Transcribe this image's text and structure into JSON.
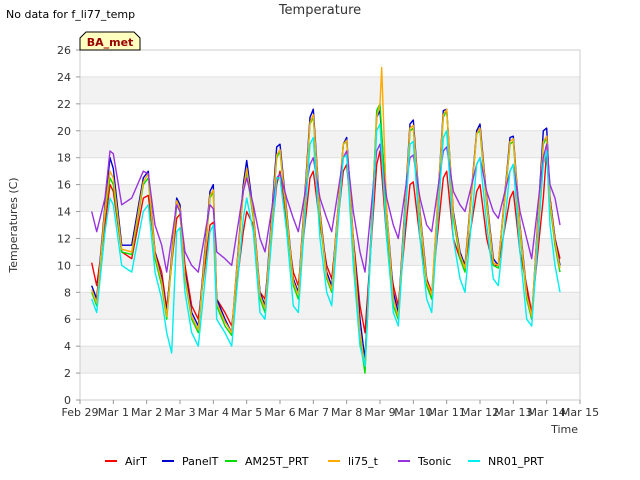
{
  "no_data_note": "No data for f_li77_temp",
  "badge": "BA_met",
  "chart_data": {
    "type": "line",
    "title": "Temperature",
    "xlabel": "Time",
    "ylabel": "Temperatures (C)",
    "ylim": [
      0,
      26
    ],
    "yticks": [
      0,
      2,
      4,
      6,
      8,
      10,
      12,
      14,
      16,
      18,
      20,
      22,
      24,
      26
    ],
    "xlim": [
      0,
      15
    ],
    "xtick_labels": [
      "Feb 29",
      "Mar 1",
      "Mar 2",
      "Mar 3",
      "Mar 4",
      "Mar 5",
      "Mar 6",
      "Mar 7",
      "Mar 8",
      "Mar 9",
      "Mar 10",
      "Mar 11",
      "Mar 12",
      "Mar 13",
      "Mar 14",
      "Mar 15"
    ],
    "grid": "horizontal bands",
    "legend_position": "bottom",
    "series": [
      {
        "name": "AirT",
        "color": "#ff0000",
        "x": [
          0.35,
          0.5,
          0.75,
          0.9,
          1.0,
          1.25,
          1.55,
          1.9,
          2.05,
          2.25,
          2.45,
          2.6,
          2.9,
          3.0,
          3.15,
          3.35,
          3.55,
          3.9,
          4.0,
          4.1,
          4.35,
          4.55,
          4.9,
          5.0,
          5.2,
          5.4,
          5.55,
          5.9,
          6.0,
          6.2,
          6.4,
          6.55,
          6.9,
          7.0,
          7.2,
          7.4,
          7.55,
          7.9,
          8.0,
          8.2,
          8.4,
          8.55,
          8.9,
          9.0,
          9.2,
          9.4,
          9.55,
          9.9,
          10.0,
          10.2,
          10.4,
          10.55,
          10.9,
          11.0,
          11.2,
          11.4,
          11.55,
          11.9,
          12.0,
          12.2,
          12.4,
          12.55,
          12.9,
          13.0,
          13.2,
          13.4,
          13.55,
          13.9,
          14.0,
          14.1,
          14.25,
          14.4
        ],
        "y": [
          10.2,
          8.5,
          13.0,
          16.0,
          15.5,
          11.0,
          10.5,
          15.0,
          15.2,
          11.0,
          9.5,
          6.8,
          13.5,
          13.8,
          10.0,
          7.0,
          6.0,
          13.0,
          13.2,
          7.5,
          6.5,
          5.5,
          12.5,
          14.0,
          13.0,
          8.0,
          7.5,
          16.0,
          17.0,
          13.0,
          9.5,
          8.5,
          16.5,
          17.0,
          13.0,
          10.0,
          9.0,
          17.0,
          17.5,
          12.0,
          7.0,
          5.0,
          17.5,
          18.5,
          12.0,
          8.5,
          7.0,
          16.0,
          16.2,
          12.0,
          9.0,
          8.0,
          16.5,
          17.0,
          12.0,
          10.5,
          10.0,
          15.5,
          16.0,
          12.0,
          10.0,
          10.0,
          15.0,
          15.5,
          11.0,
          8.5,
          6.5,
          15.0,
          18.5,
          15.0,
          12.0,
          10.5
        ]
      },
      {
        "name": "PanelT",
        "color": "#0000cc",
        "x": [
          0.35,
          0.5,
          0.75,
          0.9,
          1.0,
          1.25,
          1.55,
          1.9,
          2.05,
          2.25,
          2.45,
          2.6,
          2.9,
          3.0,
          3.15,
          3.35,
          3.55,
          3.9,
          4.0,
          4.1,
          4.35,
          4.55,
          4.9,
          5.0,
          5.2,
          5.4,
          5.55,
          5.9,
          6.0,
          6.2,
          6.4,
          6.55,
          6.9,
          7.0,
          7.2,
          7.4,
          7.55,
          7.9,
          8.0,
          8.2,
          8.4,
          8.55,
          8.9,
          9.0,
          9.2,
          9.4,
          9.55,
          9.9,
          10.0,
          10.2,
          10.4,
          10.55,
          10.9,
          11.0,
          11.2,
          11.4,
          11.55,
          11.9,
          12.0,
          12.2,
          12.4,
          12.55,
          12.9,
          13.0,
          13.2,
          13.4,
          13.55,
          13.9,
          14.0,
          14.1,
          14.25,
          14.4
        ],
        "y": [
          8.5,
          7.5,
          14.5,
          18.0,
          17.2,
          11.5,
          11.5,
          16.5,
          17.0,
          11.0,
          9.0,
          6.5,
          15.0,
          14.5,
          9.5,
          6.5,
          5.5,
          15.5,
          16.0,
          7.5,
          6.0,
          5.0,
          16.0,
          17.8,
          14.0,
          8.0,
          7.0,
          18.8,
          19.0,
          14.0,
          9.0,
          8.0,
          21.0,
          21.6,
          14.0,
          9.5,
          8.5,
          19.0,
          19.5,
          12.0,
          6.0,
          3.0,
          21.0,
          21.5,
          14.0,
          8.0,
          6.5,
          20.5,
          20.8,
          14.0,
          9.0,
          7.5,
          21.5,
          21.6,
          14.0,
          11.0,
          10.0,
          20.0,
          20.5,
          15.0,
          10.5,
          10.0,
          19.5,
          19.6,
          13.0,
          8.0,
          6.0,
          20.0,
          20.2,
          15.0,
          12.0,
          10.0
        ]
      },
      {
        "name": "AM25T_PRT",
        "color": "#00dd00",
        "x": [
          0.35,
          0.5,
          0.75,
          0.9,
          1.0,
          1.25,
          1.55,
          1.9,
          2.05,
          2.25,
          2.45,
          2.6,
          2.9,
          3.0,
          3.15,
          3.35,
          3.55,
          3.9,
          4.0,
          4.1,
          4.35,
          4.55,
          4.9,
          5.0,
          5.2,
          5.4,
          5.55,
          5.9,
          6.0,
          6.2,
          6.4,
          6.55,
          6.9,
          7.0,
          7.2,
          7.4,
          7.55,
          7.9,
          8.0,
          8.2,
          8.4,
          8.55,
          8.9,
          9.0,
          9.2,
          9.4,
          9.55,
          9.9,
          10.0,
          10.2,
          10.4,
          10.55,
          10.9,
          11.0,
          11.2,
          11.4,
          11.55,
          11.9,
          12.0,
          12.2,
          12.4,
          12.55,
          12.9,
          13.0,
          13.2,
          13.4,
          13.55,
          13.9,
          14.0,
          14.1,
          14.25,
          14.4
        ],
        "y": [
          8.0,
          7.0,
          14.0,
          16.5,
          16.0,
          11.0,
          10.8,
          16.0,
          16.5,
          10.5,
          8.5,
          6.0,
          14.5,
          14.0,
          9.0,
          6.0,
          5.0,
          15.0,
          15.5,
          7.0,
          5.5,
          4.8,
          15.5,
          17.0,
          13.5,
          7.5,
          6.5,
          18.0,
          18.5,
          13.5,
          8.5,
          7.5,
          20.5,
          21.0,
          13.5,
          9.0,
          8.0,
          19.0,
          19.2,
          11.5,
          4.5,
          2.0,
          21.5,
          22.0,
          13.5,
          7.0,
          6.0,
          20.0,
          20.2,
          13.5,
          8.5,
          7.5,
          21.0,
          21.5,
          13.5,
          10.5,
          9.5,
          19.8,
          20.0,
          14.5,
          10.0,
          9.8,
          19.0,
          19.2,
          12.5,
          7.5,
          6.0,
          19.0,
          19.5,
          14.5,
          11.5,
          9.5
        ]
      },
      {
        "name": "li75_t",
        "color": "#ffaa00",
        "x": [
          0.35,
          0.5,
          0.75,
          0.9,
          1.0,
          1.25,
          1.55,
          1.9,
          2.05,
          2.25,
          2.45,
          2.6,
          2.9,
          3.0,
          3.15,
          3.35,
          3.55,
          3.9,
          4.0,
          4.1,
          4.35,
          4.55,
          4.9,
          5.0,
          5.2,
          5.4,
          5.55,
          5.9,
          6.0,
          6.2,
          6.4,
          6.55,
          6.9,
          7.0,
          7.2,
          7.4,
          7.55,
          7.9,
          8.0,
          8.2,
          8.4,
          8.55,
          8.9,
          9.0,
          9.05,
          9.2,
          9.4,
          9.55,
          9.9,
          10.0,
          10.2,
          10.4,
          10.55,
          10.9,
          11.0,
          11.2,
          11.4,
          11.55,
          11.9,
          12.0,
          12.2,
          12.4,
          12.55,
          12.9,
          13.0,
          13.2,
          13.4,
          13.55,
          13.9,
          14.0,
          14.1,
          14.25,
          14.4
        ],
        "y": [
          8.2,
          7.2,
          14.2,
          17.0,
          16.5,
          11.2,
          11.0,
          16.2,
          16.8,
          10.8,
          8.8,
          6.2,
          14.8,
          14.2,
          9.2,
          6.2,
          5.2,
          15.2,
          15.6,
          7.2,
          5.8,
          5.0,
          15.6,
          17.2,
          13.8,
          7.8,
          6.8,
          18.2,
          18.6,
          13.8,
          8.8,
          7.8,
          20.6,
          21.2,
          13.8,
          9.2,
          8.2,
          19.0,
          19.3,
          11.8,
          5.0,
          2.5,
          21.0,
          22.0,
          24.7,
          14.0,
          7.5,
          6.2,
          20.2,
          20.4,
          13.8,
          8.8,
          7.8,
          21.2,
          21.6,
          13.8,
          10.8,
          9.8,
          19.8,
          20.2,
          14.8,
          10.2,
          10.0,
          19.2,
          19.4,
          12.8,
          7.8,
          6.2,
          19.2,
          19.6,
          14.8,
          11.8,
          9.8
        ]
      },
      {
        "name": "Tsonic",
        "color": "#9933dd",
        "x": [
          0.35,
          0.5,
          0.75,
          0.9,
          1.0,
          1.25,
          1.55,
          1.9,
          2.05,
          2.25,
          2.45,
          2.6,
          2.9,
          3.0,
          3.15,
          3.35,
          3.55,
          3.9,
          4.0,
          4.1,
          4.35,
          4.55,
          4.9,
          5.0,
          5.2,
          5.4,
          5.55,
          5.9,
          6.0,
          6.2,
          6.4,
          6.55,
          6.9,
          7.0,
          7.2,
          7.4,
          7.55,
          7.9,
          8.0,
          8.2,
          8.4,
          8.55,
          8.9,
          9.0,
          9.2,
          9.4,
          9.55,
          9.9,
          10.0,
          10.2,
          10.4,
          10.55,
          10.9,
          11.0,
          11.2,
          11.4,
          11.55,
          11.9,
          12.0,
          12.2,
          12.4,
          12.55,
          12.9,
          13.0,
          13.2,
          13.4,
          13.55,
          13.9,
          14.0,
          14.1,
          14.25,
          14.4
        ],
        "y": [
          14.0,
          12.5,
          15.0,
          18.5,
          18.3,
          14.5,
          15.0,
          17.0,
          16.8,
          13.0,
          11.5,
          9.5,
          14.5,
          14.0,
          11.0,
          10.0,
          9.5,
          14.5,
          14.2,
          11.0,
          10.5,
          10.0,
          15.5,
          16.5,
          14.5,
          12.0,
          11.0,
          16.5,
          16.8,
          15.0,
          13.5,
          12.5,
          17.5,
          18.0,
          15.0,
          13.5,
          12.5,
          18.0,
          18.5,
          14.0,
          11.0,
          9.5,
          18.5,
          19.0,
          15.0,
          13.0,
          12.0,
          18.0,
          18.2,
          15.0,
          13.0,
          12.5,
          18.5,
          18.8,
          15.5,
          14.5,
          14.0,
          17.5,
          18.0,
          15.5,
          14.0,
          13.5,
          17.0,
          17.5,
          14.0,
          12.0,
          10.5,
          18.0,
          19.0,
          16.0,
          15.0,
          13.0
        ]
      },
      {
        "name": "NR01_PRT",
        "color": "#00eeee",
        "x": [
          0.35,
          0.5,
          0.75,
          0.9,
          1.0,
          1.25,
          1.55,
          1.9,
          2.05,
          2.25,
          2.45,
          2.6,
          2.75,
          2.9,
          3.0,
          3.15,
          3.35,
          3.55,
          3.9,
          4.0,
          4.1,
          4.35,
          4.55,
          4.9,
          5.0,
          5.2,
          5.4,
          5.55,
          5.9,
          6.0,
          6.2,
          6.4,
          6.55,
          6.9,
          7.0,
          7.2,
          7.4,
          7.55,
          7.9,
          8.0,
          8.2,
          8.4,
          8.55,
          8.9,
          9.0,
          9.2,
          9.4,
          9.55,
          9.9,
          10.0,
          10.2,
          10.4,
          10.55,
          10.9,
          11.0,
          11.2,
          11.4,
          11.55,
          11.9,
          12.0,
          12.2,
          12.4,
          12.55,
          12.9,
          13.0,
          13.2,
          13.4,
          13.55,
          13.9,
          14.0,
          14.1,
          14.25,
          14.4
        ],
        "y": [
          7.5,
          6.5,
          12.5,
          15.0,
          14.5,
          10.0,
          9.5,
          14.0,
          14.5,
          9.5,
          7.5,
          5.0,
          3.5,
          12.5,
          12.8,
          8.0,
          5.0,
          4.0,
          12.5,
          13.0,
          6.0,
          5.0,
          4.0,
          13.5,
          15.0,
          12.5,
          6.5,
          6.0,
          16.5,
          16.5,
          12.5,
          7.0,
          6.5,
          19.0,
          19.5,
          12.0,
          8.0,
          7.0,
          18.0,
          18.2,
          10.0,
          4.0,
          2.5,
          20.0,
          20.5,
          12.0,
          6.5,
          5.5,
          19.0,
          19.2,
          12.0,
          7.5,
          6.5,
          19.5,
          20.0,
          12.0,
          9.0,
          8.0,
          17.5,
          18.0,
          13.0,
          9.0,
          8.5,
          17.0,
          17.5,
          11.0,
          6.0,
          5.5,
          17.5,
          18.5,
          13.0,
          10.0,
          8.0
        ]
      }
    ]
  }
}
